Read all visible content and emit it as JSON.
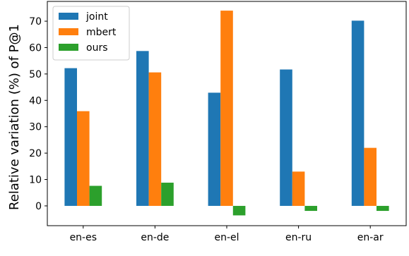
{
  "chart_data": {
    "type": "bar",
    "categories": [
      "en-es",
      "en-de",
      "en-el",
      "en-ru",
      "en-ar"
    ],
    "series": [
      {
        "name": "joint",
        "values": [
          52.2,
          58.7,
          42.9,
          51.7,
          70.2
        ],
        "color": "#1f77b4"
      },
      {
        "name": "mbert",
        "values": [
          35.9,
          50.6,
          74.0,
          13.0,
          22.0
        ],
        "color": "#ff7f0e"
      },
      {
        "name": "ours",
        "values": [
          7.6,
          8.8,
          -3.6,
          -1.9,
          -1.9
        ],
        "color": "#2ca02c"
      }
    ],
    "title": "",
    "xlabel": "",
    "ylabel": "Relative variation (%) of P@1",
    "ylim": [
      -7.5,
      77.5
    ],
    "yticks": [
      0,
      10,
      20,
      30,
      40,
      50,
      60,
      70
    ],
    "legend_position": "top-left",
    "grid": false
  }
}
